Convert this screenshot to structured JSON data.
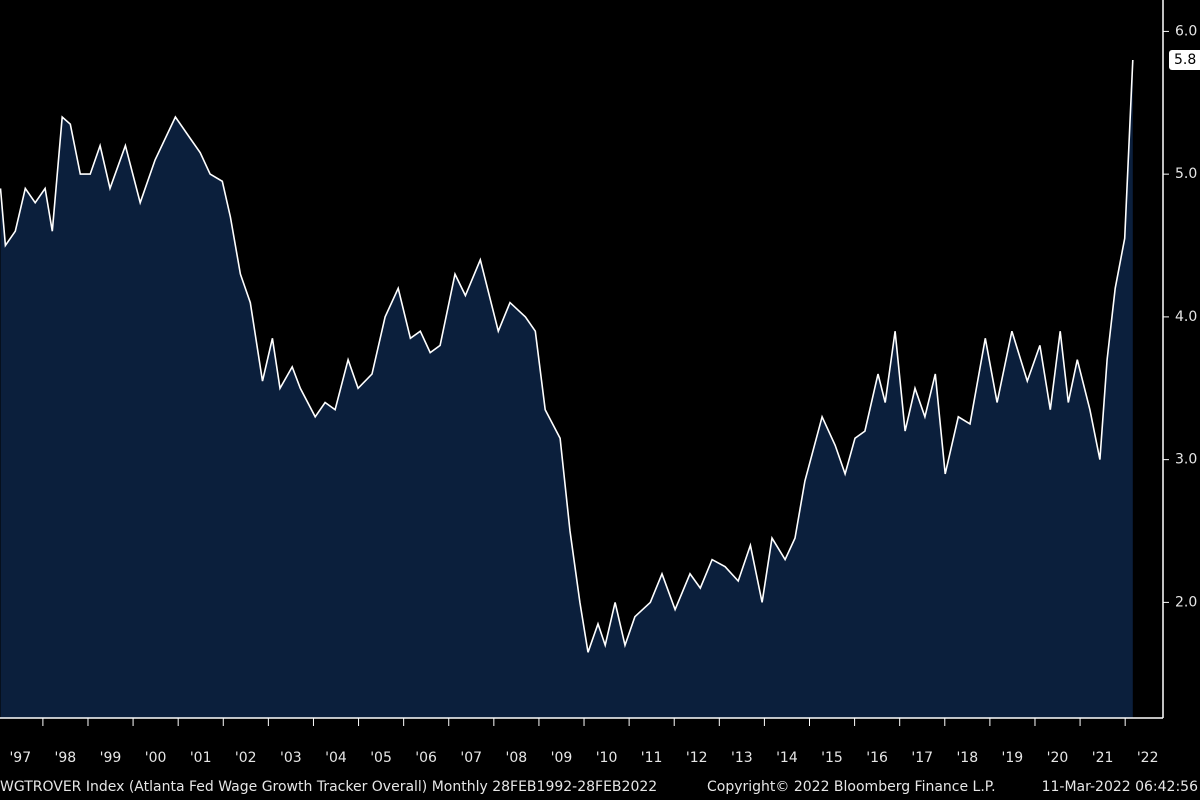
{
  "chart_data": {
    "type": "area",
    "footer_left": "WGTROVER Index (Atlanta Fed Wage Growth Tracker Overall)  Monthly 28FEB1992-28FEB2022",
    "footer_center": "Copyright© 2022 Bloomberg Finance L.P.",
    "footer_right": "11-Mar-2022 06:42:56",
    "line_color": "#ffffff",
    "fill_color": "#0b1f3c",
    "x": [
      1997.06,
      1997.17,
      1997.39,
      1997.61,
      1997.83,
      1998.05,
      1998.21,
      1998.43,
      1998.61,
      1998.83,
      1999.05,
      1999.27,
      1999.49,
      1999.83,
      2000.16,
      2000.49,
      2000.94,
      2001.27,
      2001.49,
      2001.71,
      2001.98,
      2002.16,
      2002.38,
      2002.6,
      2002.87,
      2003.09,
      2003.26,
      2003.53,
      2003.71,
      2004.04,
      2004.26,
      2004.48,
      2004.77,
      2004.99,
      2005.3,
      2005.59,
      2005.88,
      2006.15,
      2006.37,
      2006.59,
      2006.81,
      2007.14,
      2007.37,
      2007.7,
      2008.1,
      2008.36,
      2008.7,
      2008.92,
      2009.14,
      2009.47,
      2009.69,
      2009.91,
      2010.09,
      2010.31,
      2010.47,
      2010.69,
      2010.91,
      2011.13,
      2011.47,
      2011.73,
      2012.02,
      2012.35,
      2012.58,
      2012.84,
      2013.13,
      2013.42,
      2013.69,
      2013.95,
      2014.17,
      2014.46,
      2014.68,
      2014.9,
      2015.28,
      2015.57,
      2015.79,
      2016.01,
      2016.23,
      2016.52,
      2016.68,
      2016.9,
      2017.12,
      2017.34,
      2017.56,
      2017.79,
      2018.01,
      2018.3,
      2018.56,
      2018.9,
      2019.16,
      2019.49,
      2019.83,
      2020.11,
      2020.34,
      2020.56,
      2020.74,
      2020.94,
      2021.22,
      2021.44,
      2021.6,
      2021.78,
      2021.99,
      2022.17
    ],
    "series": [
      {
        "name": "WGTROVER Index",
        "values": [
          4.9,
          4.5,
          4.6,
          4.9,
          4.8,
          4.9,
          4.6,
          5.4,
          5.35,
          5.0,
          5.0,
          5.2,
          4.9,
          5.2,
          4.8,
          5.1,
          5.4,
          5.25,
          5.15,
          5.0,
          4.95,
          4.7,
          4.3,
          4.1,
          3.55,
          3.85,
          3.5,
          3.65,
          3.5,
          3.3,
          3.4,
          3.35,
          3.7,
          3.5,
          3.6,
          4.0,
          4.2,
          3.85,
          3.9,
          3.75,
          3.8,
          4.3,
          4.15,
          4.4,
          3.9,
          4.1,
          4.0,
          3.9,
          3.35,
          3.15,
          2.5,
          2.0,
          1.65,
          1.85,
          1.7,
          2.0,
          1.7,
          1.9,
          2.0,
          2.2,
          1.95,
          2.2,
          2.1,
          2.3,
          2.25,
          2.15,
          2.4,
          2.0,
          2.45,
          2.3,
          2.45,
          2.85,
          3.3,
          3.1,
          2.9,
          3.15,
          3.2,
          3.6,
          3.4,
          3.9,
          3.2,
          3.5,
          3.3,
          3.6,
          2.9,
          3.3,
          3.25,
          3.85,
          3.4,
          3.9,
          3.55,
          3.8,
          3.35,
          3.9,
          3.4,
          3.7,
          3.35,
          3.0,
          3.7,
          4.2,
          4.55,
          5.8
        ]
      }
    ],
    "xlim": [
      1997.05,
      2022.84
    ],
    "ylim": [
      1.19,
      6.22
    ],
    "xticks": [
      {
        "value": 1997.5,
        "label": "'97"
      },
      {
        "value": 1998.5,
        "label": "'98"
      },
      {
        "value": 1999.5,
        "label": "'99"
      },
      {
        "value": 2000.5,
        "label": "'00"
      },
      {
        "value": 2001.5,
        "label": "'01"
      },
      {
        "value": 2002.5,
        "label": "'02"
      },
      {
        "value": 2003.5,
        "label": "'03"
      },
      {
        "value": 2004.5,
        "label": "'04"
      },
      {
        "value": 2005.5,
        "label": "'05"
      },
      {
        "value": 2006.5,
        "label": "'06"
      },
      {
        "value": 2007.5,
        "label": "'07"
      },
      {
        "value": 2008.5,
        "label": "'08"
      },
      {
        "value": 2009.5,
        "label": "'09"
      },
      {
        "value": 2010.5,
        "label": "'10"
      },
      {
        "value": 2011.5,
        "label": "'11"
      },
      {
        "value": 2012.5,
        "label": "'12"
      },
      {
        "value": 2013.5,
        "label": "'13"
      },
      {
        "value": 2014.5,
        "label": "'14"
      },
      {
        "value": 2015.5,
        "label": "'15"
      },
      {
        "value": 2016.5,
        "label": "'16"
      },
      {
        "value": 2017.5,
        "label": "'17"
      },
      {
        "value": 2018.5,
        "label": "'18"
      },
      {
        "value": 2019.5,
        "label": "'19"
      },
      {
        "value": 2020.5,
        "label": "'20"
      },
      {
        "value": 2021.5,
        "label": "'21"
      },
      {
        "value": 2022.5,
        "label": "'22"
      }
    ],
    "yticks": [
      {
        "value": 2,
        "label": "2.0"
      },
      {
        "value": 3,
        "label": "3.0"
      },
      {
        "value": 4,
        "label": "4.0"
      },
      {
        "value": 5,
        "label": "5.0"
      },
      {
        "value": 6,
        "label": "6.0"
      }
    ]
  }
}
